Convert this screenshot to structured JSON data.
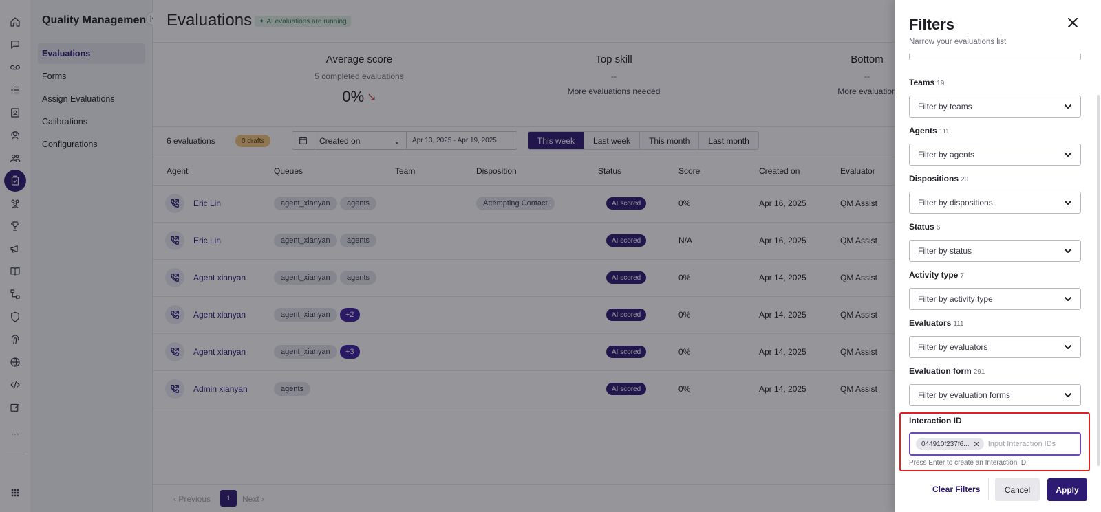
{
  "app": {
    "rail_icons": [
      "home-icon",
      "chat-icon",
      "voicemail-icon",
      "list-icon",
      "contacts-icon",
      "agent-icon",
      "team-icon",
      "clipboard-icon",
      "people-icon",
      "trophy-icon",
      "megaphone-icon",
      "book-icon",
      "flow-icon",
      "shield-icon",
      "fingerprint-icon",
      "globe-icon",
      "code-icon",
      "edit-icon",
      "more-icon",
      "apps-icon"
    ],
    "rail_more": "···"
  },
  "sidebar": {
    "title": "Quality Management",
    "items": [
      {
        "label": "Evaluations",
        "active": true
      },
      {
        "label": "Forms",
        "active": false
      },
      {
        "label": "Assign Evaluations",
        "active": false
      },
      {
        "label": "Calibrations",
        "active": false
      },
      {
        "label": "Configurations",
        "active": false
      }
    ]
  },
  "header": {
    "title": "Evaluations",
    "ai_badge": "AI evaluations are running"
  },
  "stats": [
    {
      "label": "Average score",
      "sub": "5 completed evaluations",
      "value": "0%",
      "trend": "down"
    },
    {
      "label": "Top skill",
      "sub": "--",
      "value": "More evaluations needed"
    },
    {
      "label": "Bottom",
      "sub": "--",
      "value": "More evaluation"
    }
  ],
  "toolbar": {
    "count": "6 evaluations",
    "drafts": "0 drafts",
    "date_field": "Created on",
    "date_range": "Apr 13, 2025 - Apr 19, 2025",
    "ranges": [
      {
        "label": "This week",
        "active": true
      },
      {
        "label": "Last week",
        "active": false
      },
      {
        "label": "This month",
        "active": false
      },
      {
        "label": "Last month",
        "active": false
      }
    ]
  },
  "table": {
    "columns": [
      "Agent",
      "Queues",
      "Team",
      "Disposition",
      "Status",
      "Score",
      "Created on",
      "Evaluator"
    ],
    "rows": [
      {
        "agent": "Eric Lin",
        "queues": [
          "agent_xianyan",
          "agents"
        ],
        "more": "",
        "team": "",
        "disposition": "Attempting Contact",
        "status": "AI scored",
        "score": "0%",
        "created": "Apr 16, 2025",
        "evaluator": "QM Assist"
      },
      {
        "agent": "Eric Lin",
        "queues": [
          "agent_xianyan",
          "agents"
        ],
        "more": "",
        "team": "",
        "disposition": "",
        "status": "AI scored",
        "score": "N/A",
        "created": "Apr 16, 2025",
        "evaluator": "QM Assist"
      },
      {
        "agent": "Agent xianyan",
        "queues": [
          "agent_xianyan",
          "agents"
        ],
        "more": "",
        "team": "",
        "disposition": "",
        "status": "AI scored",
        "score": "0%",
        "created": "Apr 14, 2025",
        "evaluator": "QM Assist"
      },
      {
        "agent": "Agent xianyan",
        "queues": [
          "agent_xianyan"
        ],
        "more": "+2",
        "team": "",
        "disposition": "",
        "status": "AI scored",
        "score": "0%",
        "created": "Apr 14, 2025",
        "evaluator": "QM Assist"
      },
      {
        "agent": "Agent xianyan",
        "queues": [
          "agent_xianyan"
        ],
        "more": "+3",
        "team": "",
        "disposition": "",
        "status": "AI scored",
        "score": "0%",
        "created": "Apr 14, 2025",
        "evaluator": "QM Assist"
      },
      {
        "agent": "Admin xianyan",
        "queues": [
          "agents"
        ],
        "more": "",
        "team": "",
        "disposition": "",
        "status": "AI scored",
        "score": "0%",
        "created": "Apr 14, 2025",
        "evaluator": "QM Assist"
      }
    ]
  },
  "pager": {
    "previous": "Previous",
    "page": "1",
    "next": "Next"
  },
  "filters": {
    "title": "Filters",
    "subtitle": "Narrow your evaluations list",
    "groups": [
      {
        "label": "Teams",
        "count": "19",
        "placeholder": "Filter by teams"
      },
      {
        "label": "Agents",
        "count": "111",
        "placeholder": "Filter by agents"
      },
      {
        "label": "Dispositions",
        "count": "20",
        "placeholder": "Filter by dispositions"
      },
      {
        "label": "Status",
        "count": "6",
        "placeholder": "Filter by status"
      },
      {
        "label": "Activity type",
        "count": "7",
        "placeholder": "Filter by activity type"
      },
      {
        "label": "Evaluators",
        "count": "111",
        "placeholder": "Filter by evaluators"
      },
      {
        "label": "Evaluation form",
        "count": "291",
        "placeholder": "Filter by evaluation forms"
      }
    ],
    "interaction_id": {
      "label": "Interaction ID",
      "chip": "044910f237f6...",
      "placeholder": "Input Interaction IDs",
      "help": "Press Enter to create an Interaction ID"
    },
    "clear_label": "Clear Filters",
    "cancel_label": "Cancel",
    "apply_label": "Apply"
  },
  "colors": {
    "brand": "#2d1a73",
    "highlight": "#e02020",
    "focus": "#6b43d8"
  }
}
